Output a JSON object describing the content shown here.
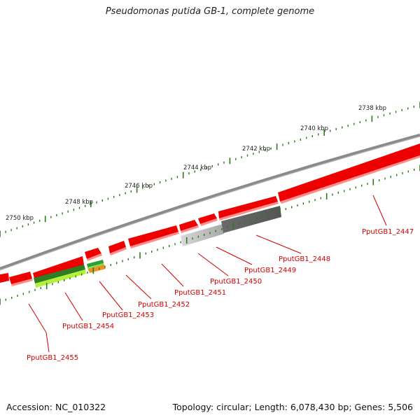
{
  "title": "Pseudomonas putida GB-1, complete genome",
  "footer": {
    "accession": "Accession: NC_010322",
    "info": "Topology: circular; Length: 6,078,430 bp; Genes: 5,506"
  },
  "colors": {
    "backbone": "#7a7a7a",
    "gene_red": "#ee0000",
    "gene_red_light": "#ff8080",
    "tick_green": "#2a7a1a",
    "label_red": "#d00000"
  },
  "scale_labels": [
    "2738 kbp",
    "2740 kbp",
    "2742 kbp",
    "2744 kbp",
    "2746 kbp",
    "2748 kbp",
    "2750 kbp"
  ],
  "genes": [
    "PputGB1_2447",
    "PputGB1_2448",
    "PputGB1_2449",
    "PputGB1_2450",
    "PputGB1_2451",
    "PputGB1_2452",
    "PputGB1_2453",
    "PputGB1_2454",
    "PputGB1_2455"
  ]
}
